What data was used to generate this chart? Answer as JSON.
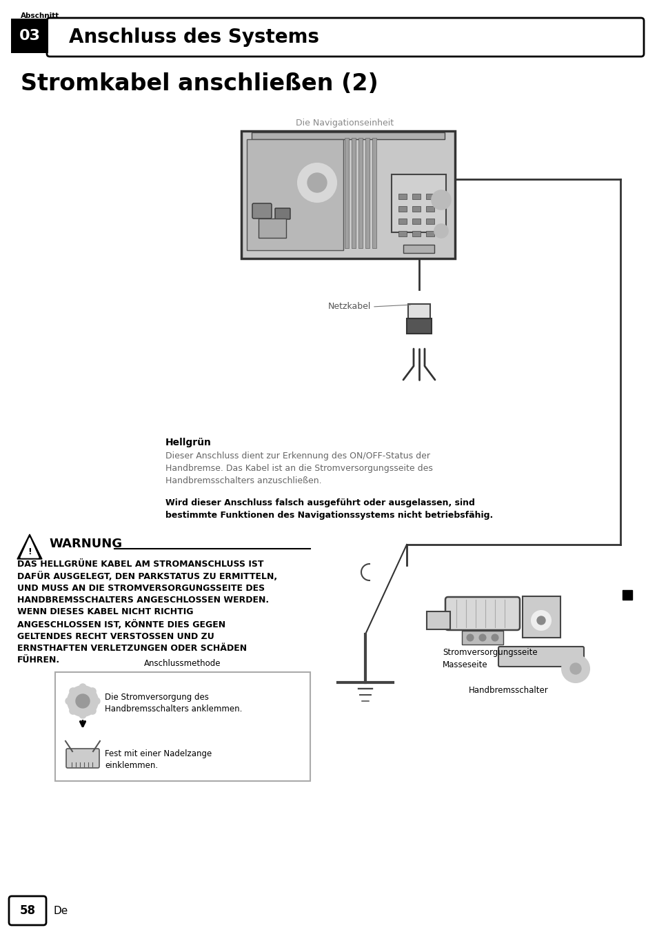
{
  "page_bg": "#ffffff",
  "section_label": "Abschnitt",
  "section_number": "03",
  "section_title": "Anschluss des Systems",
  "page_title": "Stromkabel anschließen (2)",
  "nav_unit_label": "Die Navigationseinheit",
  "netzkabel_label": "Netzkabel",
  "hellgruen_title": "Hellgrün",
  "hellgruen_body": "Dieser Anschluss dient zur Erkennung des ON/OFF-Status der\nHandbremse. Das Kabel ist an die Stromversorgungsseite des\nHandbremsschalters anzuschließen.",
  "hellgruen_bold": "Wird dieser Anschluss falsch ausgeführt oder ausgelassen, sind\nbestimmte Funktionen des Navigationssystems nicht betriebsfähig.",
  "warning_title": "WARNUNG",
  "warning_text": "DAS HELLGRÜNE KABEL AM STROMANSCHLUSS IST\nDAFÜR AUSGELEGT, DEN PARKSTATUS ZU ERMITTELN,\nUND MUSS AN DIE STROMVERSORGUNGSSEITE DES\nHANDBREMSSCHALTERS ANGESCHLOSSEN WERDEN.\nWENN DIESES KABEL NICHT RICHTIG\nANGESCHLOSSEN IST, KÖNNTE DIES GEGEN\nGELTENDES RECHT VERSTOSSEN UND ZU\nERNSTHAFTEN VERLETZUNGEN ODER SCHÄDEN\nFÜHREN.",
  "anschluss_title": "Anschlussmethode",
  "anschluss_text1": "Die Stromversorgung des\nHandbremsschalters anklemmen.",
  "anschluss_text2": "Fest mit einer Nadelzange\neinklemmen.",
  "stromvers_label": "Stromversorgungsseite",
  "masse_label": "Masseseite",
  "hand_label": "Handbremsschalter",
  "page_number": "58",
  "page_lang": "De"
}
